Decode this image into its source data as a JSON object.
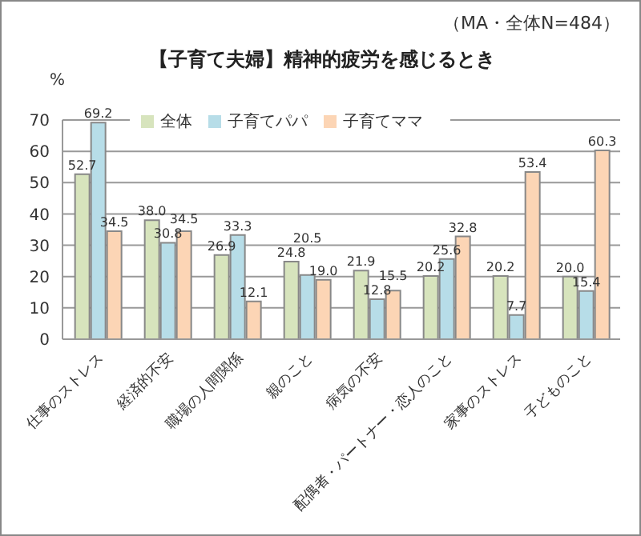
{
  "chart_data": {
    "type": "bar",
    "title": "【子育て夫婦】精神的疲労を感じるとき",
    "ylabel": "%",
    "annotations": [
      "（MA・全体N=484）"
    ],
    "categories": [
      "仕事のストレス",
      "経済的不安",
      "職場の人間関係",
      "親のこと",
      "病気の不安",
      "配偶者・パートナー・恋人のこと",
      "家事のストレス",
      "子どものこと"
    ],
    "series": [
      {
        "name": "全体",
        "color": "#d7e4bd",
        "values": [
          52.7,
          38,
          26.9,
          24.8,
          21.9,
          20.2,
          20.2,
          20
        ],
        "value_labels": [
          "52.7",
          "38.0",
          "26.9",
          "24.8",
          "21.9",
          "20.2",
          "20.2",
          "20.0"
        ]
      },
      {
        "name": "子育てパパ",
        "color": "#b7dde8",
        "values": [
          69.2,
          30.8,
          33.3,
          20.5,
          12.8,
          25.6,
          7.7,
          15.4
        ],
        "value_labels": [
          "69.2",
          "30.8",
          "33.3",
          "20.5",
          "12.8",
          "25.6",
          "7.7",
          "15.4"
        ]
      },
      {
        "name": "子育てママ",
        "color": "#fcd5b5",
        "values": [
          34.5,
          34.5,
          12.1,
          19,
          15.5,
          32.8,
          53.4,
          60.3
        ],
        "value_labels": [
          "34.5",
          "34.5",
          "12.1",
          "19.0",
          "15.5",
          "32.8",
          "53.4",
          "60.3"
        ]
      }
    ],
    "ylim": [
      0,
      70
    ],
    "yticks": [
      0,
      10,
      20,
      30,
      40,
      50,
      60,
      70
    ],
    "grid": "y",
    "legend": "top"
  }
}
